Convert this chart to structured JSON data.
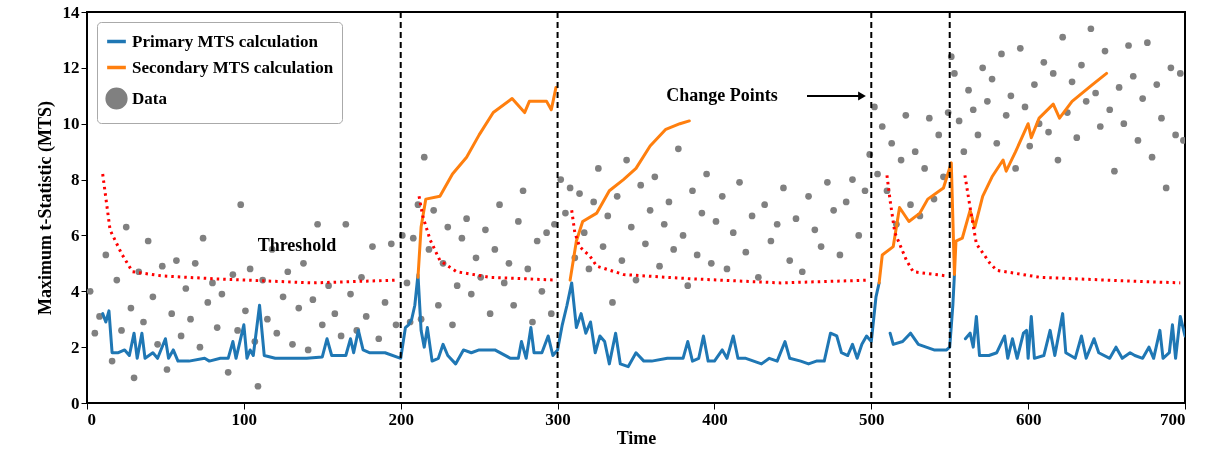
{
  "chart_data": {
    "type": "line",
    "xlabel": "Time",
    "ylabel": "Maximum t-Statistic (MTS)",
    "xlim": [
      0,
      700
    ],
    "xticks": [
      0,
      100,
      200,
      300,
      400,
      500,
      600,
      700
    ],
    "ylim": [
      0,
      14
    ],
    "yticks": [
      0,
      2,
      4,
      6,
      8,
      10,
      12,
      14
    ],
    "legend": "top left",
    "series": [
      {
        "name": "Primary MTS calculation",
        "color": "#1f77b4",
        "x": [
          10,
          12,
          14,
          16,
          20,
          24,
          27,
          30,
          32,
          35,
          37,
          42,
          45,
          50,
          52,
          55,
          58,
          65,
          75,
          78,
          85,
          90,
          93,
          95,
          100,
          102,
          104,
          106,
          110,
          113,
          120,
          140,
          150,
          153,
          156,
          165,
          168,
          170,
          173,
          176,
          180,
          190,
          200,
          203,
          205,
          207,
          209,
          211,
          213,
          215,
          217,
          220,
          224,
          227,
          230,
          235,
          240,
          245,
          250,
          260,
          270,
          275,
          277,
          280,
          283,
          285,
          290,
          294,
          297,
          300,
          303,
          306,
          309,
          312,
          315,
          318,
          321,
          324,
          327,
          330,
          333,
          337,
          340,
          345,
          350,
          355,
          360,
          370,
          380,
          383,
          386,
          390,
          393,
          396,
          400,
          405,
          408,
          412,
          415,
          420,
          425,
          430,
          435,
          440,
          445,
          448,
          455,
          460,
          465,
          470,
          474,
          478,
          481,
          485,
          488,
          491,
          494,
          497,
          500,
          503,
          505,
          508,
          512,
          514,
          520,
          525,
          530,
          540,
          548,
          550,
          552,
          553,
          556,
          560,
          563,
          565,
          567,
          569,
          575,
          580,
          585,
          587,
          590,
          593,
          597,
          599,
          600,
          602,
          604,
          610,
          614,
          617,
          622,
          624,
          630,
          634,
          637,
          642,
          645,
          652,
          656,
          660,
          665,
          668,
          673,
          677,
          680,
          684,
          686,
          690,
          692,
          694,
          697,
          700
        ],
        "values": [
          3.2,
          2.9,
          3.3,
          1.8,
          1.8,
          1.9,
          1.7,
          2.5,
          1.6,
          2.5,
          1.6,
          1.8,
          1.6,
          2.3,
          1.6,
          1.9,
          1.5,
          1.5,
          1.6,
          1.5,
          1.6,
          1.6,
          2.2,
          1.6,
          2.8,
          1.6,
          1.9,
          1.7,
          3.5,
          1.7,
          1.6,
          1.6,
          1.65,
          2.3,
          1.7,
          1.7,
          2.3,
          1.8,
          2.6,
          1.9,
          1.8,
          1.8,
          1.6,
          2.7,
          2.8,
          3.0,
          3.5,
          4.6,
          2.6,
          2.0,
          2.7,
          1.5,
          1.6,
          2.1,
          1.7,
          1.4,
          1.9,
          1.8,
          1.9,
          1.9,
          1.6,
          1.6,
          2.2,
          1.6,
          2.7,
          1.8,
          1.8,
          2.4,
          1.7,
          1.9,
          2.8,
          3.5,
          4.3,
          2.7,
          3.2,
          2.5,
          2.9,
          1.8,
          2.4,
          2.2,
          1.4,
          2.5,
          1.4,
          1.3,
          1.8,
          1.5,
          1.5,
          1.6,
          1.6,
          2.2,
          1.5,
          1.6,
          2.4,
          1.5,
          1.5,
          1.9,
          1.6,
          2.4,
          1.6,
          1.6,
          1.5,
          1.4,
          1.6,
          1.5,
          2.2,
          1.6,
          1.5,
          1.4,
          1.5,
          1.5,
          2.5,
          2.4,
          1.8,
          1.7,
          2.1,
          1.6,
          2.1,
          2.4,
          2.2,
          3.8,
          4.3,
          null,
          2.5,
          2.1,
          2.2,
          2.5,
          2.1,
          1.9,
          1.9,
          2.0,
          3.5,
          4.6,
          null,
          2.3,
          2.5,
          2.0,
          3.1,
          1.7,
          1.7,
          1.8,
          2.4,
          1.6,
          2.3,
          1.6,
          2.5,
          2.6,
          1.6,
          3.1,
          1.6,
          1.7,
          2.6,
          1.7,
          3.2,
          1.8,
          1.6,
          2.4,
          1.6,
          2.3,
          1.8,
          1.6,
          2.0,
          1.6,
          1.8,
          1.7,
          1.6,
          2.0,
          1.6,
          2.6,
          1.6,
          1.8,
          2.8,
          1.6,
          3.1,
          2.4
        ]
      },
      {
        "name": "Secondary MTS calculation",
        "color": "#ff7f0e",
        "x": [
          211,
          213,
          216,
          225,
          233,
          242,
          250,
          259,
          271,
          279,
          282,
          293,
          296,
          299,
          300,
          308,
          312,
          316,
          325,
          333,
          342,
          350,
          359,
          369,
          378,
          384,
          385,
          505,
          507,
          514,
          518,
          524,
          531,
          536,
          546,
          551,
          553,
          554,
          558,
          563,
          566,
          571,
          577,
          584,
          586,
          592,
          600,
          602,
          607,
          616,
          620,
          628,
          641,
          650
        ],
        "values": [
          4.5,
          6.3,
          7.3,
          7.4,
          8.2,
          8.8,
          9.6,
          10.4,
          10.9,
          10.4,
          10.8,
          10.8,
          10.5,
          11.3,
          null,
          4.4,
          5.8,
          6.5,
          6.8,
          7.6,
          8.0,
          8.4,
          9.2,
          9.8,
          10.0,
          10.1,
          null,
          4.3,
          5.3,
          5.6,
          7.0,
          6.5,
          6.8,
          7.3,
          7.7,
          8.6,
          4.6,
          5.8,
          5.9,
          6.9,
          6.3,
          7.4,
          8.1,
          8.7,
          8.3,
          9.0,
          10.0,
          9.5,
          10.2,
          10.7,
          10.2,
          10.8,
          11.4,
          11.8
        ]
      },
      {
        "name": "Data",
        "type": "scatter",
        "color": "#808080",
        "x": [
          2,
          5,
          8,
          12,
          16,
          19,
          22,
          25,
          28,
          30,
          33,
          36,
          39,
          42,
          45,
          48,
          51,
          54,
          57,
          60,
          63,
          66,
          69,
          72,
          74,
          77,
          80,
          83,
          86,
          90,
          93,
          96,
          98,
          101,
          104,
          107,
          109,
          112,
          115,
          118,
          121,
          125,
          128,
          131,
          135,
          138,
          141,
          144,
          147,
          150,
          154,
          158,
          162,
          165,
          168,
          172,
          175,
          178,
          182,
          186,
          190,
          194,
          197,
          201,
          204,
          206,
          208,
          211,
          213,
          215,
          218,
          221,
          224,
          227,
          230,
          233,
          236,
          239,
          242,
          245,
          248,
          251,
          254,
          257,
          260,
          263,
          266,
          269,
          272,
          275,
          278,
          281,
          284,
          287,
          290,
          293,
          296,
          298,
          302,
          305,
          308,
          311,
          314,
          317,
          320,
          323,
          326,
          329,
          332,
          335,
          338,
          341,
          344,
          347,
          350,
          353,
          356,
          359,
          362,
          365,
          368,
          371,
          374,
          377,
          380,
          383,
          386,
          389,
          392,
          395,
          398,
          401,
          405,
          408,
          412,
          416,
          420,
          424,
          428,
          432,
          436,
          440,
          444,
          448,
          452,
          456,
          460,
          464,
          468,
          472,
          476,
          480,
          484,
          488,
          492,
          496,
          499,
          502,
          504,
          507,
          510,
          513,
          516,
          519,
          522,
          525,
          528,
          531,
          534,
          537,
          540,
          543,
          546,
          549,
          551,
          553,
          556,
          559,
          562,
          565,
          568,
          571,
          574,
          577,
          580,
          583,
          586,
          589,
          592,
          595,
          598,
          601,
          604,
          607,
          610,
          613,
          616,
          619,
          622,
          625,
          628,
          631,
          634,
          637,
          640,
          643,
          646,
          649,
          652,
          655,
          658,
          661,
          664,
          667,
          670,
          673,
          676,
          679,
          682,
          685,
          688,
          691,
          694,
          697,
          699
        ],
        "values": [
          4.0,
          2.5,
          3.1,
          5.3,
          1.5,
          4.4,
          2.6,
          6.3,
          3.4,
          0.9,
          4.7,
          2.9,
          5.8,
          3.8,
          2.1,
          4.9,
          1.2,
          3.2,
          5.1,
          2.4,
          4.1,
          3.0,
          5.0,
          2.0,
          5.9,
          3.6,
          4.3,
          2.7,
          3.9,
          1.1,
          4.6,
          2.6,
          7.1,
          3.3,
          4.8,
          2.2,
          0.6,
          4.4,
          3.0,
          5.5,
          2.5,
          3.8,
          4.7,
          2.1,
          3.4,
          5.0,
          1.9,
          3.7,
          6.4,
          2.8,
          4.2,
          3.2,
          2.4,
          6.4,
          3.9,
          2.6,
          4.5,
          3.1,
          5.6,
          2.3,
          3.6,
          5.7,
          2.8,
          6.0,
          4.3,
          2.9,
          5.9,
          7.1,
          3.0,
          8.8,
          5.5,
          6.9,
          3.5,
          5.0,
          6.3,
          2.8,
          4.2,
          5.9,
          6.6,
          3.9,
          5.2,
          4.5,
          6.2,
          3.2,
          5.5,
          7.1,
          4.3,
          5.0,
          3.5,
          6.5,
          7.6,
          4.8,
          2.9,
          5.8,
          4.0,
          6.1,
          3.2,
          6.4,
          8.0,
          6.8,
          7.7,
          5.2,
          7.5,
          6.1,
          4.8,
          7.2,
          8.4,
          5.6,
          6.7,
          3.6,
          7.4,
          5.1,
          8.7,
          6.3,
          4.4,
          7.8,
          5.7,
          6.9,
          8.1,
          4.9,
          6.4,
          7.2,
          5.5,
          9.1,
          6.0,
          4.2,
          7.6,
          5.3,
          6.8,
          8.2,
          5.0,
          6.5,
          7.4,
          4.8,
          6.1,
          7.9,
          5.4,
          6.7,
          4.5,
          7.1,
          5.8,
          6.4,
          7.7,
          5.1,
          6.6,
          4.7,
          7.4,
          6.2,
          5.6,
          7.9,
          6.9,
          5.3,
          7.2,
          8.0,
          6.0,
          7.6,
          8.9,
          10.6,
          8.2,
          9.9,
          7.6,
          9.3,
          6.4,
          8.7,
          10.3,
          7.1,
          9.0,
          6.7,
          8.4,
          10.2,
          7.3,
          9.6,
          8.1,
          10.4,
          12.4,
          11.8,
          10.1,
          9.0,
          11.2,
          10.5,
          9.6,
          12.0,
          10.8,
          11.6,
          9.3,
          12.5,
          10.3,
          11.0,
          8.4,
          12.7,
          10.6,
          9.2,
          11.4,
          10.0,
          12.2,
          9.7,
          11.8,
          8.7,
          13.1,
          10.4,
          11.5,
          9.5,
          12.1,
          10.8,
          13.4,
          11.1,
          9.9,
          12.6,
          10.5,
          8.3,
          11.3,
          10.0,
          12.8,
          11.7,
          9.4,
          10.9,
          12.9,
          8.8,
          11.4,
          10.2,
          7.7,
          12.0,
          9.6,
          11.8,
          9.4
        ]
      },
      {
        "color": "#ff0000",
        "line_style": "dotted",
        "x": [
          10,
          14.7,
          22,
          29,
          48,
          80,
          144,
          197.6,
          200,
          211.7,
          214,
          218.7,
          225,
          235.7,
          257,
          299.5,
          300,
          309,
          311,
          314,
          320.7,
          325,
          342,
          384,
          442,
          499,
          500,
          510,
          512,
          515,
          522.5,
          526.7,
          548,
          550,
          559.7,
          563,
          567,
          575.7,
          580,
          607.5,
          650,
          697
        ],
        "values": [
          8.2,
          6.2,
          5.35,
          4.7,
          4.55,
          4.45,
          4.3,
          4.4,
          null,
          7.4,
          6.7,
          5.85,
          5.1,
          4.7,
          4.5,
          4.4,
          null,
          6.9,
          6.1,
          5.6,
          5.25,
          4.9,
          4.6,
          4.45,
          4.3,
          4.4,
          null,
          8.15,
          7.25,
          6.1,
          5.1,
          4.7,
          4.55,
          null,
          8.15,
          7.0,
          5.7,
          5.0,
          4.75,
          4.5,
          4.4,
          4.3
        ]
      }
    ],
    "ref_lines": [
      {
        "axis": "x",
        "value": 200,
        "color": "#000000",
        "line_style": "dashed"
      },
      {
        "axis": "x",
        "value": 300,
        "color": "#000000",
        "line_style": "dashed"
      },
      {
        "axis": "x",
        "value": 500,
        "color": "#000000",
        "line_style": "dashed"
      },
      {
        "axis": "x",
        "value": 550,
        "color": "#000000",
        "line_style": "dashed"
      }
    ],
    "annotations": [
      "Threshold",
      "Change Points"
    ]
  }
}
